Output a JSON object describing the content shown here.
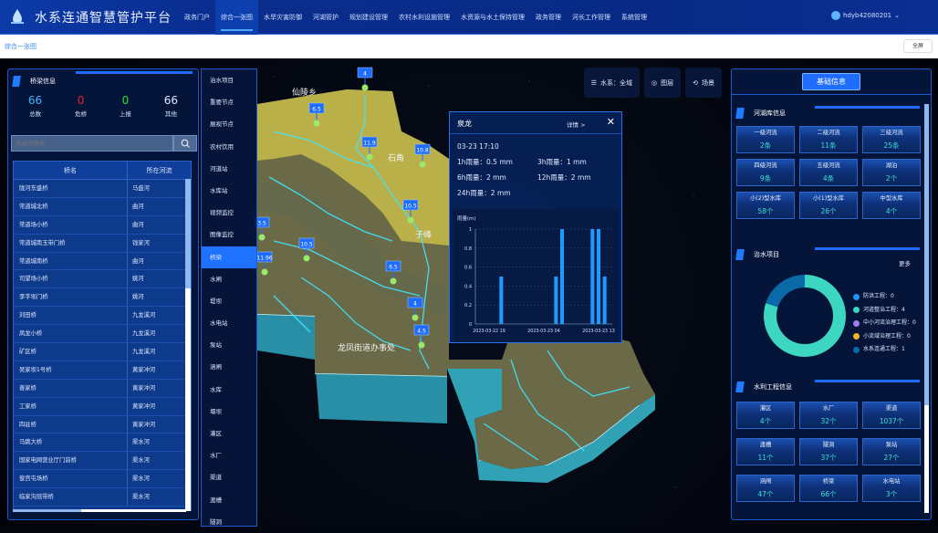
{
  "header": {
    "title": "水系连通智慧管护平台",
    "nav": [
      "政务门户",
      "综合一张图",
      "水旱灾害防御",
      "河湖管护",
      "规划建设管理",
      "农村水利设施管理",
      "水资源与水土保持管理",
      "政务管理",
      "河长工作管理",
      "系统管理"
    ],
    "active_nav": 1,
    "user": "hdyb42080201"
  },
  "breadcrumb": {
    "current": "综合一张图",
    "fullscreen_label": "全屏"
  },
  "left_panel": {
    "title": "桥梁信息",
    "stats": [
      {
        "value": "66",
        "label": "总数",
        "color": "#3fb6ff"
      },
      {
        "value": "0",
        "label": "危桥",
        "color": "#e0252a"
      },
      {
        "value": "0",
        "label": "上报",
        "color": "#2fe02a"
      },
      {
        "value": "66",
        "label": "其他",
        "color": "#dfe8ff"
      }
    ],
    "search_placeholder": "关键字搜索",
    "columns": [
      "桥名",
      "所在河流"
    ],
    "rows": [
      [
        "陇河东盛桥",
        "马盛河"
      ],
      [
        "常道城北桥",
        "曲河"
      ],
      [
        "常道场小桥",
        "曲河"
      ],
      [
        "常道城南玉带门桥",
        "钱家河"
      ],
      [
        "常道城南桥",
        "曲河"
      ],
      [
        "司望场小桥",
        "姚河"
      ],
      [
        "李字坝门桥",
        "姚河"
      ],
      [
        "刘田桥",
        "九龙溪河"
      ],
      [
        "凤龙小桥",
        "九龙溪河"
      ],
      [
        "矿区桥",
        "九龙溪河"
      ],
      [
        "吴家坝1号桥",
        "黄家冲河"
      ],
      [
        "善家桥",
        "黄家冲河"
      ],
      [
        "工家桥",
        "黄家冲河"
      ],
      [
        "四驻桥",
        "黄家冲河"
      ],
      [
        "马跳大桥",
        "渠水河"
      ],
      [
        "国家电网营业厅门前桥",
        "渠水河"
      ],
      [
        "俊宫屯场桥",
        "渠水河"
      ],
      [
        "临家沟冠带桥",
        "渠水河"
      ]
    ]
  },
  "side_menu": {
    "items": [
      "治水项目",
      "重要节点",
      "展视节点",
      "农村饮用",
      "河道站",
      "水库站",
      "视频监控",
      "图像监控",
      "桥梁",
      "水闸",
      "堤坝",
      "水电站",
      "泵站",
      "涵闸",
      "水库",
      "堰坝",
      "灌区",
      "水厂",
      "渠道",
      "渡槽",
      "隧洞"
    ],
    "active": 8
  },
  "map": {
    "buttons": [
      {
        "icon": "water-system-icon",
        "label": "水系：全域"
      },
      {
        "icon": "layers-icon",
        "label": "图层"
      },
      {
        "icon": "scene-icon",
        "label": "场景"
      }
    ],
    "place_labels": [
      "仙陵乡",
      "石角",
      "子峰",
      "龙凤街道办事处"
    ],
    "markers": [
      "4",
      "6.5",
      "11.9",
      "10.8",
      "10.5",
      "10.5",
      "6.5",
      "4",
      "4.5",
      "3.5",
      "11.96"
    ]
  },
  "popup": {
    "title": "泉龙",
    "detail_label": "详情 >",
    "time": "03-23 17:10",
    "rain": [
      {
        "label": "1h雨量：",
        "value": "0.5 mm"
      },
      {
        "label": "3h雨量：",
        "value": "1 mm"
      },
      {
        "label": "6h雨量：",
        "value": "2 mm"
      },
      {
        "label": "12h雨量：",
        "value": "2 mm"
      },
      {
        "label": "24h雨量：",
        "value": "2 mm"
      }
    ]
  },
  "chart_data": {
    "type": "bar",
    "ylabel": "雨量(m)",
    "ylim": [
      0,
      1
    ],
    "yticks": [
      "0",
      "0.2",
      "0.4",
      "0.6",
      "0.8",
      "1"
    ],
    "xticks": [
      "2023-03-22 19",
      "2023-03-23 04",
      "2023-03-23 13"
    ],
    "x": [
      "2023-03-22 21",
      "2023-03-23 06",
      "2023-03-23 07",
      "2023-03-23 12",
      "2023-03-23 13",
      "2023-03-23 14"
    ],
    "values": [
      0.5,
      0.5,
      1,
      1,
      1,
      0.5
    ],
    "color": "#1e9bff"
  },
  "right_panel": {
    "header": "基础信息",
    "rivers": {
      "title": "河湖库信息",
      "cards": [
        {
          "label": "一级河流",
          "value": "2条"
        },
        {
          "label": "二级河流",
          "value": "11条"
        },
        {
          "label": "三级河流",
          "value": "25条"
        },
        {
          "label": "四级河流",
          "value": "9条"
        },
        {
          "label": "五级河流",
          "value": "4条"
        },
        {
          "label": "湖泊",
          "value": "2个"
        },
        {
          "label": "小(2)型水库",
          "value": "58个"
        },
        {
          "label": "小(1)型水库",
          "value": "26个"
        },
        {
          "label": "中型水库",
          "value": "4个"
        }
      ]
    },
    "projects": {
      "title": "治水项目",
      "more": "更多",
      "items": [
        {
          "label": "防洪工程：0",
          "value": 0,
          "color": "#2196f3"
        },
        {
          "label": "河道整治工程：4",
          "value": 4,
          "color": "#3dd6c0"
        },
        {
          "label": "中小河流治理工程：0",
          "value": 0,
          "color": "#a07cf0"
        },
        {
          "label": "小流域治理工程：0",
          "value": 0,
          "color": "#f0b429"
        },
        {
          "label": "水系连通工程：1",
          "value": 1,
          "color": "#0a6aa8"
        }
      ]
    },
    "works": {
      "title": "水利工程信息",
      "cards": [
        {
          "label": "灌区",
          "value": "4个"
        },
        {
          "label": "水厂",
          "value": "32个"
        },
        {
          "label": "渠道",
          "value": "1037个"
        },
        {
          "label": "渡槽",
          "value": "11个"
        },
        {
          "label": "隧洞",
          "value": "37个"
        },
        {
          "label": "泵站",
          "value": "27个"
        },
        {
          "label": "涵闸",
          "value": "47个"
        },
        {
          "label": "桥梁",
          "value": "66个"
        },
        {
          "label": "水电站",
          "value": "3个"
        }
      ]
    }
  }
}
